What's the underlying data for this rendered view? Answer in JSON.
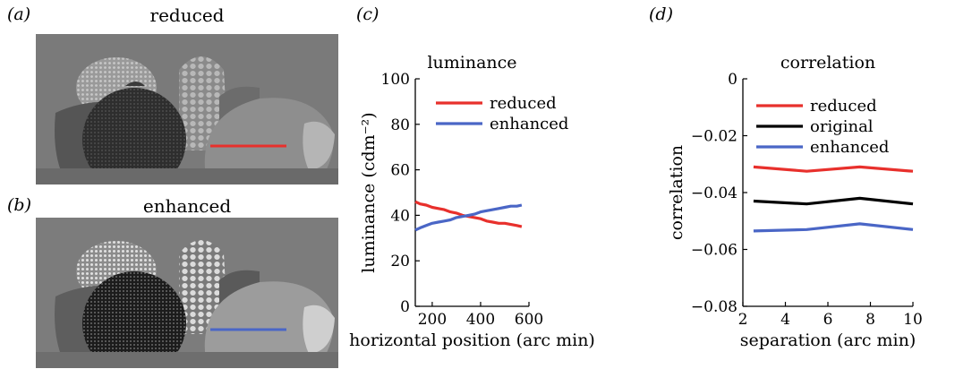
{
  "panels": {
    "a": {
      "label": "(a)",
      "title": "reduced"
    },
    "b": {
      "label": "(b)",
      "title": "enhanced"
    },
    "c": {
      "label": "(c)"
    },
    "d": {
      "label": "(d)"
    }
  },
  "colors": {
    "reduced": "#e8302c",
    "enhanced": "#4a66c6",
    "original": "#000000"
  },
  "chart_data": [
    {
      "type": "line",
      "title": "luminance",
      "xlabel": "horizontal position (arc min)",
      "ylabel": "luminance (cdm⁻²)",
      "xlim": [
        130,
        600
      ],
      "ylim": [
        0,
        100
      ],
      "xticks": [
        200,
        400,
        600
      ],
      "yticks": [
        0,
        20,
        40,
        60,
        80,
        100
      ],
      "legend": "top-left",
      "series": [
        {
          "name": "reduced",
          "color": "#e8302c",
          "x": [
            130,
            150,
            175,
            200,
            225,
            250,
            275,
            300,
            325,
            350,
            375,
            400,
            425,
            450,
            475,
            500,
            525,
            550,
            570
          ],
          "y": [
            46,
            45,
            44.5,
            43.5,
            43,
            42.5,
            41.5,
            41,
            40,
            39.5,
            39,
            38.5,
            37.5,
            37,
            36.5,
            36.5,
            36,
            35.5,
            35
          ]
        },
        {
          "name": "enhanced",
          "color": "#4a66c6",
          "x": [
            130,
            150,
            175,
            200,
            225,
            250,
            275,
            300,
            325,
            350,
            375,
            400,
            425,
            450,
            475,
            500,
            525,
            550,
            570
          ],
          "y": [
            33.5,
            34.5,
            35.5,
            36.5,
            37,
            37.5,
            38,
            39,
            39.5,
            40,
            40.5,
            41.5,
            42,
            42.5,
            43,
            43.5,
            44,
            44,
            44.5
          ]
        }
      ]
    },
    {
      "type": "line",
      "title": "correlation",
      "xlabel": "separation (arc min)",
      "ylabel": "correlation",
      "xlim": [
        2,
        10
      ],
      "ylim": [
        -0.08,
        0
      ],
      "xticks": [
        2,
        4,
        6,
        8,
        10
      ],
      "yticks": [
        -0.08,
        -0.06,
        -0.04,
        -0.02,
        0
      ],
      "ytick_labels": [
        "−0.08",
        "−0.06",
        "−0.04",
        "−0.02",
        "0"
      ],
      "legend": "top-left",
      "series": [
        {
          "name": "reduced",
          "color": "#e8302c",
          "x": [
            2.5,
            5,
            7.5,
            10
          ],
          "y": [
            -0.031,
            -0.0325,
            -0.031,
            -0.0325
          ]
        },
        {
          "name": "original",
          "color": "#000000",
          "x": [
            2.5,
            5,
            7.5,
            10
          ],
          "y": [
            -0.043,
            -0.044,
            -0.042,
            -0.044
          ]
        },
        {
          "name": "enhanced",
          "color": "#4a66c6",
          "x": [
            2.5,
            5,
            7.5,
            10
          ],
          "y": [
            -0.0535,
            -0.053,
            -0.051,
            -0.053
          ]
        }
      ]
    }
  ]
}
